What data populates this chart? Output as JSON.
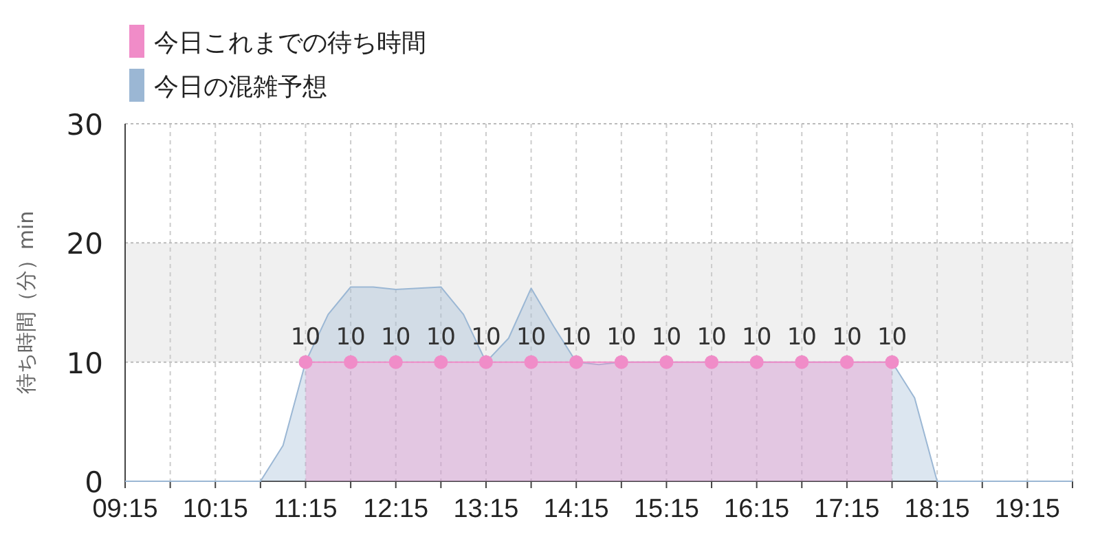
{
  "chart_data": {
    "type": "area",
    "ylabel": "待ち時間（分）min",
    "xlim": [
      9.25,
      19.75
    ],
    "xticks": [
      {
        "value": 9.25,
        "label": "09:15"
      },
      {
        "value": 9.75,
        "label": null
      },
      {
        "value": 10.25,
        "label": "10:15"
      },
      {
        "value": 10.75,
        "label": null
      },
      {
        "value": 11.25,
        "label": "11:15"
      },
      {
        "value": 11.75,
        "label": null
      },
      {
        "value": 12.25,
        "label": "12:15"
      },
      {
        "value": 12.75,
        "label": null
      },
      {
        "value": 13.25,
        "label": "13:15"
      },
      {
        "value": 13.75,
        "label": null
      },
      {
        "value": 14.25,
        "label": "14:15"
      },
      {
        "value": 14.75,
        "label": null
      },
      {
        "value": 15.25,
        "label": "15:15"
      },
      {
        "value": 15.75,
        "label": null
      },
      {
        "value": 16.25,
        "label": "16:15"
      },
      {
        "value": 16.75,
        "label": null
      },
      {
        "value": 17.25,
        "label": "17:15"
      },
      {
        "value": 17.75,
        "label": null
      },
      {
        "value": 18.25,
        "label": "18:15"
      },
      {
        "value": 18.75,
        "label": null
      },
      {
        "value": 19.25,
        "label": "19:15"
      },
      {
        "value": 19.75,
        "label": null
      }
    ],
    "ylim": [
      0,
      30
    ],
    "yticks": [
      0,
      10,
      20,
      30
    ],
    "grid": true,
    "legend": "top left",
    "bands": [
      {
        "axis": "y",
        "from": 10,
        "to": 20,
        "color": "#f0f0f0"
      }
    ],
    "series": [
      {
        "name": "今日の混雑予想",
        "type": "area",
        "color": "#9bb7d4",
        "marker": "none",
        "x": [
          9.25,
          10.25,
          10.5,
          10.75,
          11,
          11.25,
          11.5,
          11.75,
          12,
          12.25,
          12.5,
          12.75,
          13,
          13.25,
          13.5,
          13.75,
          14,
          14.25,
          14.5,
          14.75,
          15,
          15.5,
          16,
          16.5,
          17,
          17.5,
          17.75,
          18,
          18.25,
          18.5,
          19,
          19.75
        ],
        "values": [
          0,
          0,
          0,
          0,
          3,
          10,
          14,
          16.3,
          16.3,
          16.1,
          16.2,
          16.3,
          14,
          10,
          12,
          16.2,
          13,
          10,
          9.8,
          10,
          10,
          10,
          10,
          10,
          10,
          10,
          10,
          7,
          0,
          0,
          0,
          0
        ]
      },
      {
        "name": "今日これまでの待ち時間",
        "type": "area",
        "color": "#f08cc8",
        "marker": "circle",
        "data_labels": true,
        "x": [
          11.25,
          11.75,
          12.25,
          12.75,
          13.25,
          13.75,
          14.25,
          14.75,
          15.25,
          15.75,
          16.25,
          16.75,
          17.25,
          17.75
        ],
        "values": [
          10,
          10,
          10,
          10,
          10,
          10,
          10,
          10,
          10,
          10,
          10,
          10,
          10,
          10
        ]
      }
    ]
  }
}
